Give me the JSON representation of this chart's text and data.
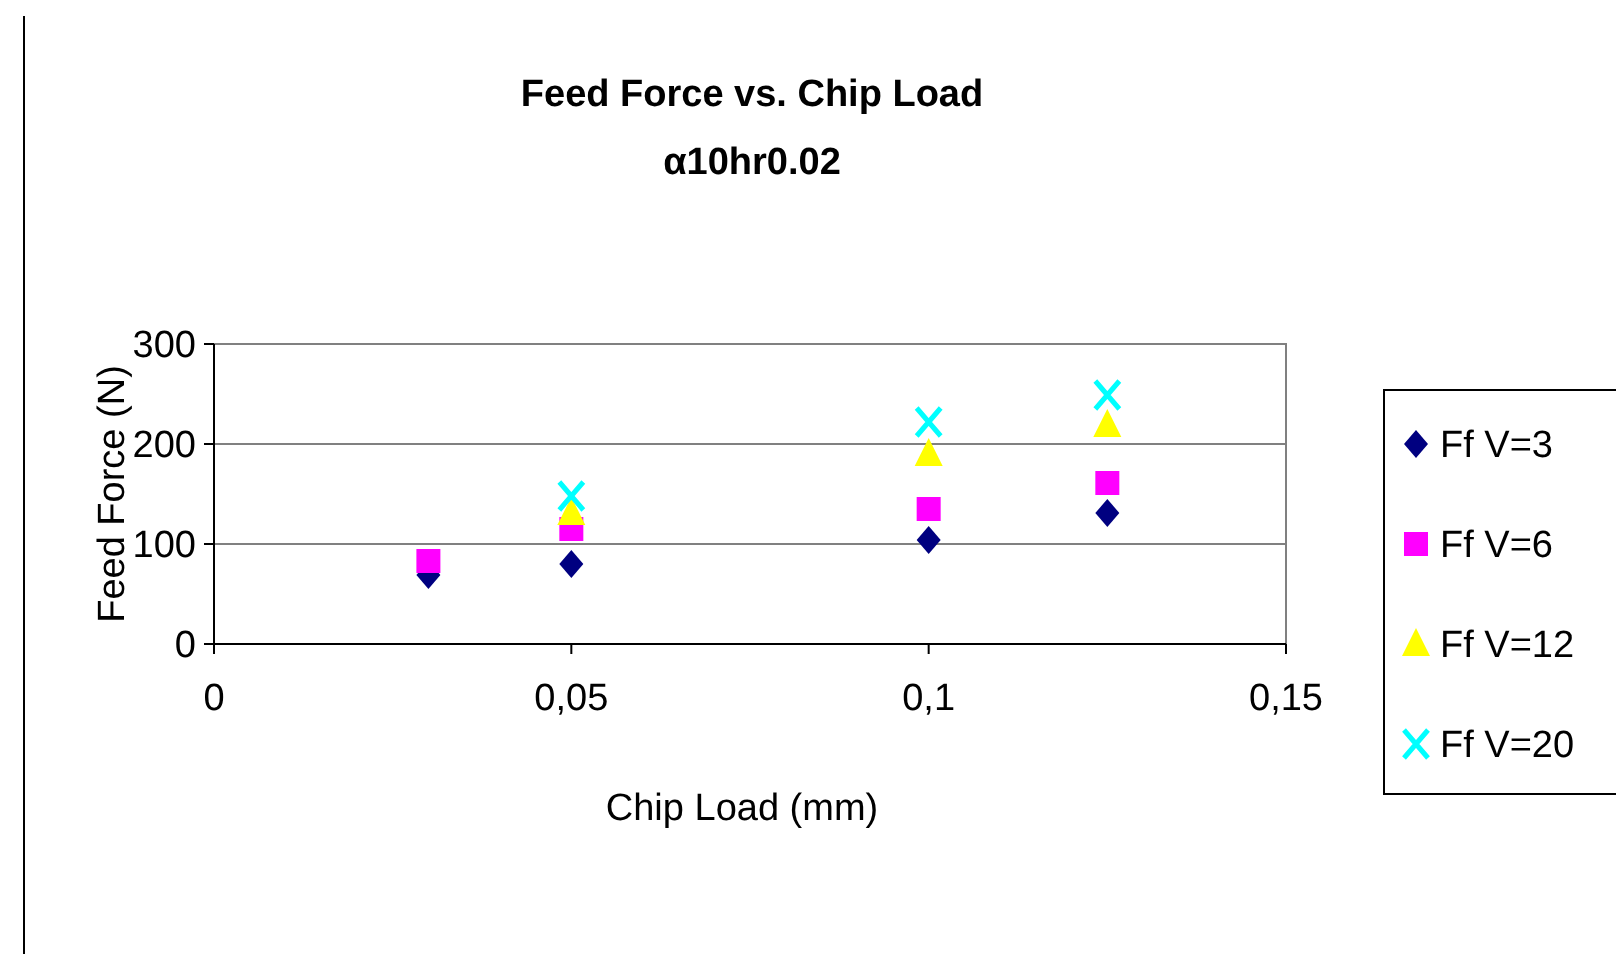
{
  "chart_data": {
    "type": "scatter",
    "title": "Feed Force vs. Chip Load",
    "subtitle": "α10hr0.02",
    "xlabel": "Chip Load (mm)",
    "ylabel": "Feed Force (N)",
    "xlim": [
      0,
      0.15
    ],
    "ylim": [
      0,
      300
    ],
    "xticks": [
      0,
      {
        "value": 0.05,
        "label": "0,05"
      },
      {
        "value": 0.1,
        "label": "0,1"
      },
      {
        "value": 0.15,
        "label": "0,15"
      }
    ],
    "yticks": [
      0,
      100,
      200,
      300
    ],
    "grid": "y",
    "legend": "right",
    "series": [
      {
        "name": "Ff V=3",
        "color": "#000080",
        "marker": "diamond",
        "x": [
          0.03,
          0.05,
          0.1,
          0.125
        ],
        "values": [
          69,
          80,
          104,
          131
        ]
      },
      {
        "name": "Ff V=6",
        "color": "#ff00ff",
        "marker": "square",
        "x": [
          0.03,
          0.05,
          0.1,
          0.125
        ],
        "values": [
          83,
          115,
          135,
          161
        ]
      },
      {
        "name": "Ff V=12",
        "color": "#ffff00",
        "marker": "triangle",
        "x": [
          0.05,
          0.1,
          0.125
        ],
        "values": [
          131,
          190,
          219
        ]
      },
      {
        "name": "Ff V=20",
        "color": "#00ffff",
        "marker": "cross",
        "x": [
          0.05,
          0.1,
          0.125
        ],
        "values": [
          148,
          222,
          249
        ]
      }
    ]
  }
}
